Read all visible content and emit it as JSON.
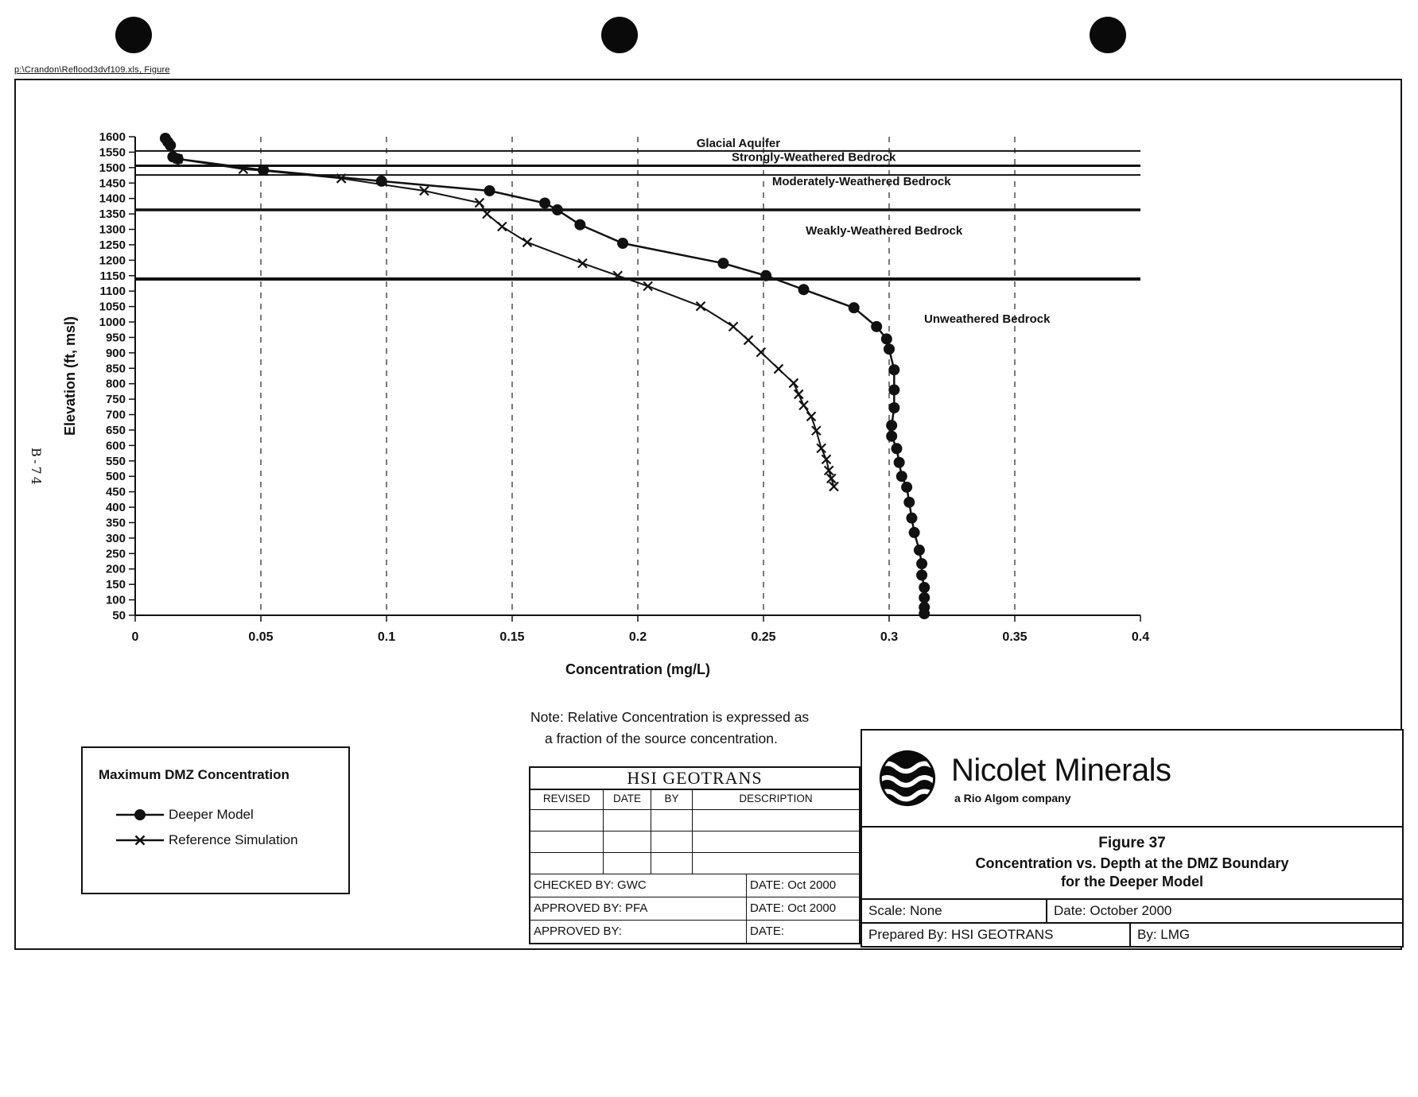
{
  "page": {
    "file_path": "p:\\Crandon\\Reflood3dvf109.xls, Figure",
    "side_label": "B-74"
  },
  "chart_data": {
    "type": "line",
    "xlabel": "Concentration (mg/L)",
    "ylabel": "Elevation (ft, msl)",
    "xlim": [
      0,
      0.4
    ],
    "ylim": [
      50,
      1600
    ],
    "x_ticks": [
      0,
      0.05,
      0.1,
      0.15,
      0.2,
      0.25,
      0.3,
      0.35,
      0.4
    ],
    "x_tick_labels": [
      "0",
      "0.05",
      "0.1",
      "0.15",
      "0.2",
      "0.25",
      "0.3",
      "0.35",
      "0.4"
    ],
    "y_ticks": [
      1600,
      1550,
      1500,
      1450,
      1400,
      1350,
      1300,
      1250,
      1200,
      1150,
      1100,
      1050,
      1000,
      950,
      900,
      850,
      800,
      750,
      700,
      650,
      600,
      550,
      500,
      450,
      400,
      350,
      300,
      250,
      200,
      150,
      100,
      50
    ],
    "gridlines_x": [
      0.05,
      0.1,
      0.15,
      0.2,
      0.25,
      0.3,
      0.35
    ],
    "zone_boundaries": [
      {
        "elevation": 1554,
        "weight": 2
      },
      {
        "elevation": 1506,
        "weight": 3
      },
      {
        "elevation": 1476,
        "weight": 2
      },
      {
        "elevation": 1363,
        "weight": 3.5
      },
      {
        "elevation": 1139,
        "weight": 4
      }
    ],
    "zone_labels": [
      {
        "text": "Glacial Aquifer",
        "x": 0.24,
        "y": 1567
      },
      {
        "text": "Strongly-Weathered Bedrock",
        "x": 0.27,
        "y": 1521
      },
      {
        "text": "Moderately-Weathered Bedrock",
        "x": 0.289,
        "y": 1443
      },
      {
        "text": "Weakly-Weathered Bedrock",
        "x": 0.298,
        "y": 1283
      },
      {
        "text": "Unweathered Bedrock",
        "x": 0.339,
        "y": 997
      }
    ],
    "series": [
      {
        "name": "Deeper Model",
        "marker": "circle",
        "points": [
          [
            0.012,
            1595
          ],
          [
            0.013,
            1583
          ],
          [
            0.014,
            1572
          ],
          [
            0.015,
            1535
          ],
          [
            0.017,
            1528
          ],
          [
            0.051,
            1492
          ],
          [
            0.098,
            1456
          ],
          [
            0.141,
            1425
          ],
          [
            0.163,
            1385
          ],
          [
            0.168,
            1363
          ],
          [
            0.177,
            1315
          ],
          [
            0.194,
            1255
          ],
          [
            0.234,
            1190
          ],
          [
            0.251,
            1150
          ],
          [
            0.266,
            1105
          ],
          [
            0.286,
            1046
          ],
          [
            0.295,
            985
          ],
          [
            0.299,
            945
          ],
          [
            0.3,
            912
          ],
          [
            0.302,
            845
          ],
          [
            0.302,
            780
          ],
          [
            0.302,
            722
          ],
          [
            0.301,
            665
          ],
          [
            0.301,
            630
          ],
          [
            0.303,
            590
          ],
          [
            0.304,
            545
          ],
          [
            0.305,
            500
          ],
          [
            0.307,
            465
          ],
          [
            0.308,
            416
          ],
          [
            0.309,
            365
          ],
          [
            0.31,
            318
          ],
          [
            0.312,
            261
          ],
          [
            0.313,
            217
          ],
          [
            0.313,
            180
          ],
          [
            0.314,
            140
          ],
          [
            0.314,
            107
          ],
          [
            0.314,
            76
          ],
          [
            0.314,
            55
          ]
        ]
      },
      {
        "name": "Reference Simulation",
        "marker": "x",
        "points": [
          [
            0.017,
            1528
          ],
          [
            0.043,
            1495
          ],
          [
            0.051,
            1490
          ],
          [
            0.082,
            1465
          ],
          [
            0.115,
            1425
          ],
          [
            0.137,
            1386
          ],
          [
            0.14,
            1350
          ],
          [
            0.146,
            1309
          ],
          [
            0.156,
            1258
          ],
          [
            0.178,
            1190
          ],
          [
            0.192,
            1150
          ],
          [
            0.204,
            1116
          ],
          [
            0.225,
            1051
          ],
          [
            0.238,
            985
          ],
          [
            0.244,
            941
          ],
          [
            0.249,
            902
          ],
          [
            0.256,
            848
          ],
          [
            0.262,
            802
          ],
          [
            0.264,
            766
          ],
          [
            0.266,
            730
          ],
          [
            0.269,
            694
          ],
          [
            0.271,
            648
          ],
          [
            0.273,
            591
          ],
          [
            0.275,
            555
          ],
          [
            0.276,
            519
          ],
          [
            0.277,
            493
          ],
          [
            0.278,
            467
          ]
        ]
      }
    ]
  },
  "legend": {
    "title": "Maximum DMZ Concentration",
    "items": [
      {
        "label": "Deeper Model",
        "marker": "circle"
      },
      {
        "label": "Reference Simulation",
        "marker": "x"
      }
    ]
  },
  "note": {
    "line1": "Note: Relative Concentration is expressed as",
    "line2": "a fraction of the source concentration."
  },
  "revision_block": {
    "company": "HSI GEOTRANS",
    "headers": [
      "REVISED",
      "DATE",
      "BY",
      "DESCRIPTION"
    ],
    "rows": [
      {
        "label": "CHECKED BY: GWC",
        "date": "DATE:  Oct 2000"
      },
      {
        "label": "APPROVED BY:  PFA",
        "date": "DATE:  Oct 2000"
      },
      {
        "label": "APPROVED BY:",
        "date": "DATE:"
      }
    ]
  },
  "branding": {
    "company": "Nicolet Minerals",
    "tagline": "a Rio Algom company",
    "figure_label": "Figure 37",
    "figure_title_line1": "Concentration vs. Depth at the DMZ Boundary",
    "figure_title_line2": "for the Deeper Model",
    "scale": "Scale:  None",
    "date": "Date: October 2000",
    "prepared_by": "Prepared By:  HSI GEOTRANS",
    "by": "By:  LMG"
  },
  "colors": {
    "ink": "#111111",
    "paper": "#ffffff"
  }
}
